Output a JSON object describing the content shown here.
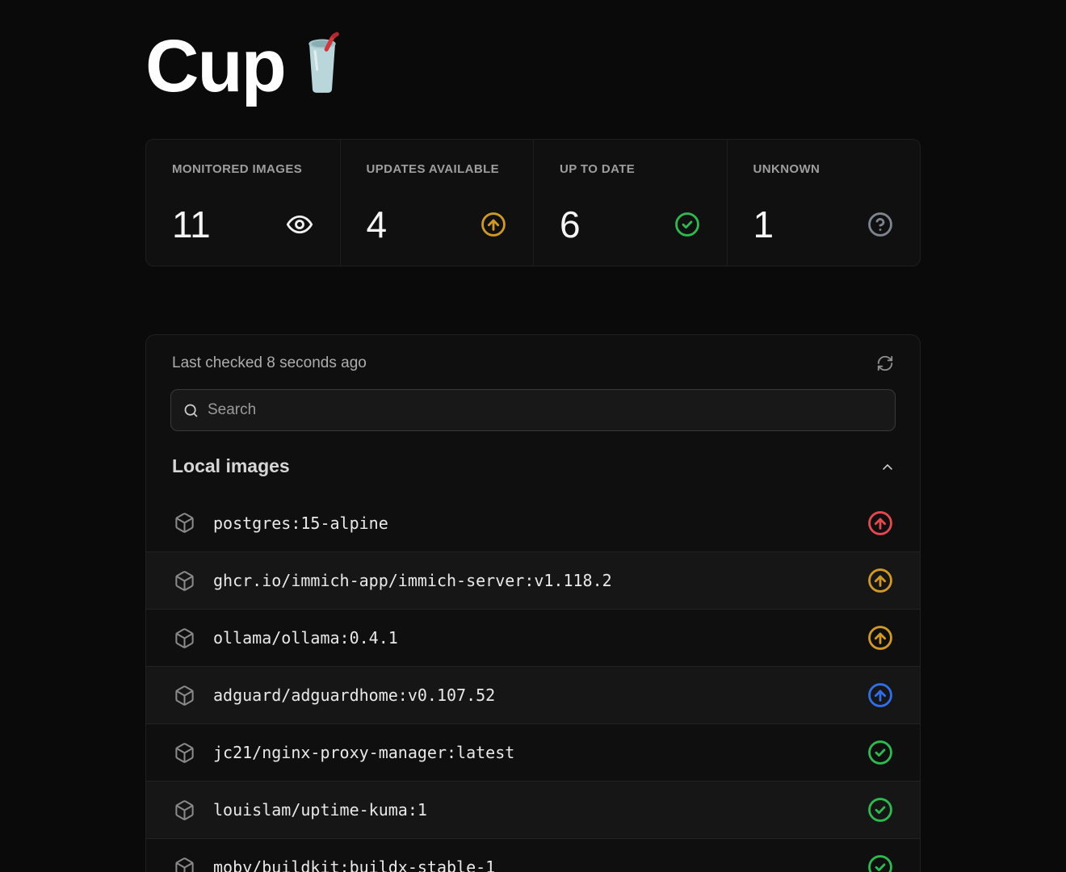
{
  "page": {
    "title": "Cup",
    "title_emoji": "cup-with-straw"
  },
  "colors": {
    "update_major": "#e5484d",
    "update_available": "#d29922",
    "update_patch": "#2f6feb",
    "up_to_date": "#2dba4e",
    "unknown": "#7d8590",
    "monitored": "#f0f0f0"
  },
  "stats": [
    {
      "label": "MONITORED IMAGES",
      "value": "11",
      "icon": "eye-icon",
      "color": "#f0f0f0"
    },
    {
      "label": "UPDATES AVAILABLE",
      "value": "4",
      "icon": "circle-arrow-up-icon",
      "color": "#d29922"
    },
    {
      "label": "UP TO DATE",
      "value": "6",
      "icon": "circle-check-icon",
      "color": "#2dba4e"
    },
    {
      "label": "UNKNOWN",
      "value": "1",
      "icon": "circle-question-icon",
      "color": "#7d8590"
    }
  ],
  "panel": {
    "last_checked": "Last checked 8 seconds ago",
    "search_placeholder": "Search",
    "search_value": "",
    "section_title": "Local images",
    "images": [
      {
        "name": "postgres:15-alpine",
        "status": "update-available-major",
        "icon": "circle-arrow-up-icon",
        "color": "#e5484d"
      },
      {
        "name": "ghcr.io/immich-app/immich-server:v1.118.2",
        "status": "update-available",
        "icon": "circle-arrow-up-icon",
        "color": "#d29922"
      },
      {
        "name": "ollama/ollama:0.4.1",
        "status": "update-available",
        "icon": "circle-arrow-up-icon",
        "color": "#d29922"
      },
      {
        "name": "adguard/adguardhome:v0.107.52",
        "status": "update-available-patch",
        "icon": "circle-arrow-up-icon",
        "color": "#2f6feb"
      },
      {
        "name": "jc21/nginx-proxy-manager:latest",
        "status": "up-to-date",
        "icon": "circle-check-icon",
        "color": "#2dba4e"
      },
      {
        "name": "louislam/uptime-kuma:1",
        "status": "up-to-date",
        "icon": "circle-check-icon",
        "color": "#2dba4e"
      },
      {
        "name": "moby/buildkit:buildx-stable-1",
        "status": "up-to-date",
        "icon": "circle-check-icon",
        "color": "#2dba4e"
      }
    ]
  }
}
